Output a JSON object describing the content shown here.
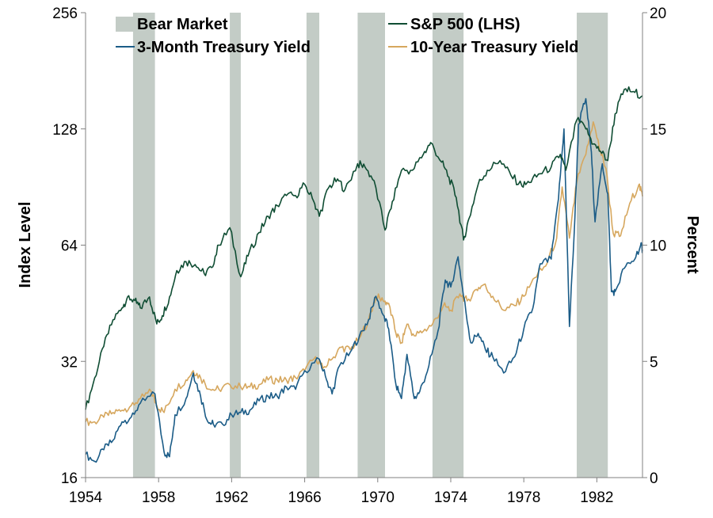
{
  "chart_data": {
    "type": "line",
    "title": "",
    "x_range": [
      1954,
      1984.5
    ],
    "x_ticks": [
      "1954",
      "1958",
      "1962",
      "1966",
      "1970",
      "1974",
      "1978",
      "1982"
    ],
    "left_axis": {
      "label": "Index Level",
      "scale": "log2",
      "range": [
        16,
        256
      ],
      "ticks": [
        "16",
        "32",
        "64",
        "128",
        "256"
      ]
    },
    "right_axis": {
      "label": "Percent",
      "scale": "linear",
      "range": [
        0,
        20
      ],
      "ticks": [
        "0",
        "5",
        "10",
        "15",
        "20"
      ]
    },
    "legend": {
      "placement": "top",
      "items": [
        "Bear Market",
        "S&P 500 (LHS)",
        "3-Month Treasury Yield",
        "10-Year Treasury Yield"
      ]
    },
    "grid": false,
    "colors": {
      "bear": "#c3ccc6",
      "sp500": "#0f4d33",
      "t3m": "#1b5c87",
      "t10y": "#d6a75e"
    },
    "bear_markets": [
      {
        "start": 1956.6,
        "end": 1957.8
      },
      {
        "start": 1961.9,
        "end": 1962.5
      },
      {
        "start": 1966.1,
        "end": 1966.8
      },
      {
        "start": 1968.9,
        "end": 1970.4
      },
      {
        "start": 1973.0,
        "end": 1974.7
      },
      {
        "start": 1980.9,
        "end": 1982.6
      }
    ],
    "series": [
      {
        "name": "S&P 500 (LHS)",
        "axis": "left",
        "points": [
          [
            1954.0,
            24
          ],
          [
            1954.5,
            29
          ],
          [
            1955.0,
            35
          ],
          [
            1955.5,
            41
          ],
          [
            1956.0,
            44
          ],
          [
            1956.3,
            47
          ],
          [
            1956.7,
            46
          ],
          [
            1957.0,
            44
          ],
          [
            1957.5,
            47
          ],
          [
            1957.9,
            40
          ],
          [
            1958.2,
            42
          ],
          [
            1958.6,
            47
          ],
          [
            1959.0,
            55
          ],
          [
            1959.5,
            58
          ],
          [
            1960.0,
            57
          ],
          [
            1960.5,
            54
          ],
          [
            1960.9,
            56
          ],
          [
            1961.3,
            64
          ],
          [
            1961.9,
            71
          ],
          [
            1962.5,
            53
          ],
          [
            1962.9,
            60
          ],
          [
            1963.5,
            69
          ],
          [
            1964.0,
            76
          ],
          [
            1964.5,
            81
          ],
          [
            1965.0,
            86
          ],
          [
            1965.5,
            86
          ],
          [
            1966.0,
            92
          ],
          [
            1966.5,
            83
          ],
          [
            1966.8,
            76
          ],
          [
            1967.3,
            90
          ],
          [
            1967.8,
            95
          ],
          [
            1968.2,
            89
          ],
          [
            1968.9,
            104
          ],
          [
            1969.3,
            102
          ],
          [
            1969.8,
            94
          ],
          [
            1970.4,
            70
          ],
          [
            1970.8,
            83
          ],
          [
            1971.3,
            100
          ],
          [
            1971.9,
            100
          ],
          [
            1972.5,
            110
          ],
          [
            1972.9,
            118
          ],
          [
            1973.5,
            105
          ],
          [
            1973.9,
            96
          ],
          [
            1974.3,
            85
          ],
          [
            1974.7,
            66
          ],
          [
            1975.0,
            75
          ],
          [
            1975.5,
            92
          ],
          [
            1976.0,
            100
          ],
          [
            1976.7,
            106
          ],
          [
            1977.3,
            97
          ],
          [
            1977.9,
            91
          ],
          [
            1978.3,
            93
          ],
          [
            1978.9,
            98
          ],
          [
            1979.5,
            102
          ],
          [
            1980.0,
            110
          ],
          [
            1980.3,
            100
          ],
          [
            1980.9,
            135
          ],
          [
            1981.4,
            128
          ],
          [
            1981.8,
            117
          ],
          [
            1982.2,
            112
          ],
          [
            1982.6,
            106
          ],
          [
            1983.0,
            140
          ],
          [
            1983.5,
            162
          ],
          [
            1984.0,
            160
          ],
          [
            1984.5,
            156
          ]
        ]
      },
      {
        "name": "3-Month Treasury Yield",
        "axis": "right",
        "points": [
          [
            1954.0,
            1.0
          ],
          [
            1954.5,
            0.7
          ],
          [
            1955.0,
            1.2
          ],
          [
            1955.5,
            1.6
          ],
          [
            1956.0,
            2.4
          ],
          [
            1956.5,
            2.6
          ],
          [
            1957.0,
            3.2
          ],
          [
            1957.8,
            3.6
          ],
          [
            1958.3,
            1.1
          ],
          [
            1958.6,
            0.9
          ],
          [
            1958.9,
            2.7
          ],
          [
            1959.5,
            3.4
          ],
          [
            1959.9,
            4.5
          ],
          [
            1960.3,
            3.5
          ],
          [
            1960.7,
            2.4
          ],
          [
            1961.0,
            2.3
          ],
          [
            1961.5,
            2.3
          ],
          [
            1962.0,
            2.7
          ],
          [
            1962.5,
            2.8
          ],
          [
            1963.0,
            2.9
          ],
          [
            1963.5,
            3.3
          ],
          [
            1964.0,
            3.5
          ],
          [
            1964.5,
            3.5
          ],
          [
            1965.0,
            3.9
          ],
          [
            1965.5,
            3.8
          ],
          [
            1966.0,
            4.6
          ],
          [
            1966.8,
            5.1
          ],
          [
            1967.2,
            4.2
          ],
          [
            1967.5,
            3.6
          ],
          [
            1967.9,
            4.8
          ],
          [
            1968.5,
            5.4
          ],
          [
            1969.0,
            6.1
          ],
          [
            1969.5,
            6.8
          ],
          [
            1969.9,
            7.8
          ],
          [
            1970.3,
            7.0
          ],
          [
            1970.6,
            6.4
          ],
          [
            1971.0,
            4.0
          ],
          [
            1971.3,
            3.4
          ],
          [
            1971.6,
            5.3
          ],
          [
            1972.0,
            3.4
          ],
          [
            1972.3,
            3.7
          ],
          [
            1972.8,
            4.8
          ],
          [
            1973.3,
            6.3
          ],
          [
            1973.7,
            8.5
          ],
          [
            1974.0,
            8.2
          ],
          [
            1974.4,
            9.5
          ],
          [
            1974.7,
            7.8
          ],
          [
            1975.1,
            5.8
          ],
          [
            1975.5,
            6.2
          ],
          [
            1975.9,
            5.5
          ],
          [
            1976.3,
            5.2
          ],
          [
            1976.9,
            4.5
          ],
          [
            1977.5,
            5.2
          ],
          [
            1978.0,
            6.4
          ],
          [
            1978.5,
            7.3
          ],
          [
            1978.9,
            9.2
          ],
          [
            1979.5,
            9.4
          ],
          [
            1979.9,
            12.0
          ],
          [
            1980.2,
            15.0
          ],
          [
            1980.5,
            6.5
          ],
          [
            1980.8,
            11.2
          ],
          [
            1981.0,
            15.2
          ],
          [
            1981.4,
            16.3
          ],
          [
            1981.7,
            14.0
          ],
          [
            1981.9,
            11.0
          ],
          [
            1982.3,
            13.5
          ],
          [
            1982.6,
            12.2
          ],
          [
            1982.8,
            8.0
          ],
          [
            1983.0,
            8.0
          ],
          [
            1983.5,
            9.0
          ],
          [
            1984.0,
            9.3
          ],
          [
            1984.4,
            10.0
          ],
          [
            1984.5,
            9.8
          ]
        ]
      },
      {
        "name": "10-Year Treasury Yield",
        "axis": "right",
        "points": [
          [
            1954.0,
            2.4
          ],
          [
            1954.5,
            2.4
          ],
          [
            1955.0,
            2.6
          ],
          [
            1955.5,
            2.8
          ],
          [
            1956.0,
            2.9
          ],
          [
            1956.5,
            3.1
          ],
          [
            1957.0,
            3.4
          ],
          [
            1957.6,
            3.7
          ],
          [
            1957.9,
            3.1
          ],
          [
            1958.3,
            2.8
          ],
          [
            1958.9,
            3.8
          ],
          [
            1959.5,
            4.2
          ],
          [
            1959.9,
            4.6
          ],
          [
            1960.3,
            4.3
          ],
          [
            1960.8,
            3.8
          ],
          [
            1961.3,
            3.8
          ],
          [
            1961.9,
            4.0
          ],
          [
            1962.5,
            3.9
          ],
          [
            1963.0,
            3.9
          ],
          [
            1963.5,
            4.0
          ],
          [
            1964.0,
            4.2
          ],
          [
            1964.5,
            4.2
          ],
          [
            1965.0,
            4.2
          ],
          [
            1965.5,
            4.3
          ],
          [
            1966.0,
            4.6
          ],
          [
            1966.6,
            5.2
          ],
          [
            1967.0,
            4.7
          ],
          [
            1967.5,
            5.1
          ],
          [
            1968.0,
            5.6
          ],
          [
            1968.5,
            5.5
          ],
          [
            1969.0,
            6.0
          ],
          [
            1969.5,
            6.8
          ],
          [
            1969.9,
            7.8
          ],
          [
            1970.3,
            7.6
          ],
          [
            1970.6,
            7.5
          ],
          [
            1971.0,
            6.2
          ],
          [
            1971.3,
            5.8
          ],
          [
            1971.6,
            6.6
          ],
          [
            1972.0,
            6.1
          ],
          [
            1972.5,
            6.3
          ],
          [
            1973.0,
            6.6
          ],
          [
            1973.6,
            7.4
          ],
          [
            1974.0,
            7.2
          ],
          [
            1974.5,
            7.9
          ],
          [
            1974.9,
            7.6
          ],
          [
            1975.4,
            8.1
          ],
          [
            1975.8,
            8.3
          ],
          [
            1976.3,
            7.8
          ],
          [
            1976.9,
            7.2
          ],
          [
            1977.5,
            7.4
          ],
          [
            1978.0,
            7.8
          ],
          [
            1978.6,
            8.6
          ],
          [
            1979.2,
            9.1
          ],
          [
            1979.8,
            10.3
          ],
          [
            1980.1,
            12.5
          ],
          [
            1980.5,
            10.3
          ],
          [
            1980.9,
            12.7
          ],
          [
            1981.4,
            13.9
          ],
          [
            1981.8,
            15.3
          ],
          [
            1982.2,
            14.0
          ],
          [
            1982.5,
            13.3
          ],
          [
            1982.9,
            10.5
          ],
          [
            1983.3,
            10.4
          ],
          [
            1983.8,
            11.8
          ],
          [
            1984.3,
            12.6
          ],
          [
            1984.5,
            12.1
          ]
        ]
      }
    ]
  }
}
